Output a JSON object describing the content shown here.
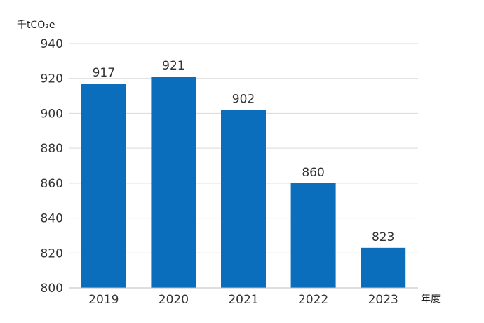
{
  "chart_data": {
    "type": "bar",
    "categories": [
      "2019",
      "2020",
      "2021",
      "2022",
      "2023"
    ],
    "values": [
      917,
      921,
      902,
      860,
      823
    ],
    "data_labels": [
      "917",
      "921",
      "902",
      "860",
      "823"
    ],
    "y_ticks": [
      "800",
      "820",
      "840",
      "860",
      "880",
      "900",
      "920",
      "940"
    ],
    "ylim": [
      800,
      940
    ],
    "y_unit": "千tCO₂e",
    "x_unit": "年度",
    "grid": true,
    "legend": "none",
    "bar_color": "#0a6ebd"
  }
}
